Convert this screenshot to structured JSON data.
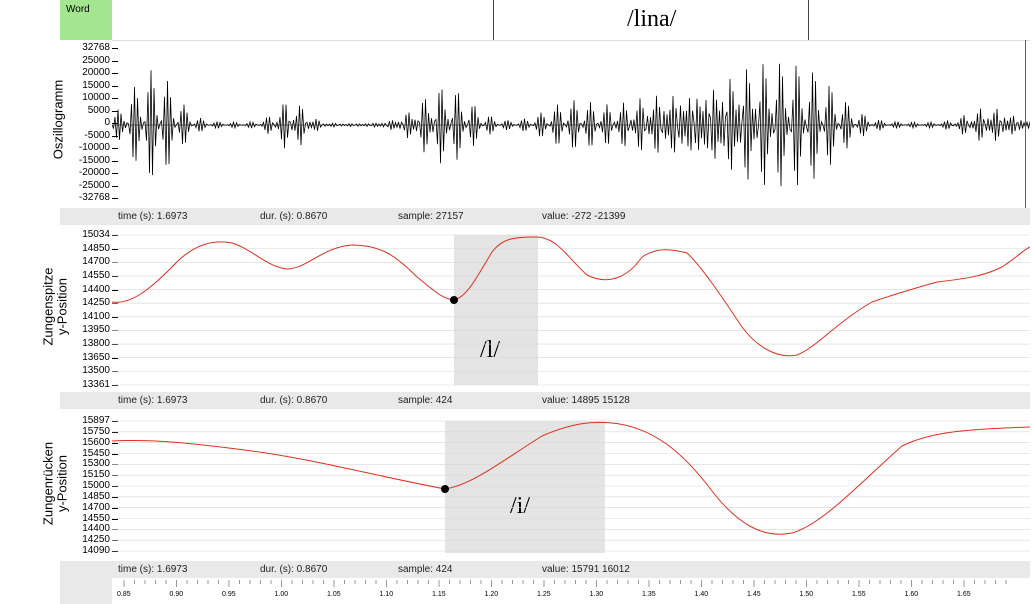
{
  "tier": {
    "name": "Word",
    "segment": "/lina/"
  },
  "panels": {
    "osc": {
      "label": "Oszillogramm",
      "ticks": [
        "32768",
        "25000",
        "20000",
        "15000",
        "10000",
        "5000",
        "0",
        "-5000",
        "-10000",
        "-15000",
        "-20000",
        "-25000",
        "-32768"
      ]
    },
    "tip": {
      "label1": "Zungenspitze",
      "label2": "y-Position",
      "ticks": [
        "15034",
        "14850",
        "14700",
        "14550",
        "14400",
        "14250",
        "14100",
        "13950",
        "13800",
        "13650",
        "13500",
        "13361"
      ],
      "segment": "/l/"
    },
    "back": {
      "label1": "Zungenrücken",
      "label2": "y-Position",
      "ticks": [
        "15897",
        "15750",
        "15600",
        "15450",
        "15300",
        "15150",
        "15000",
        "14850",
        "14700",
        "14550",
        "14400",
        "14250",
        "14090"
      ],
      "segment": "/i/"
    }
  },
  "info": [
    {
      "time": "time (s):  1.6973",
      "dur": "dur. (s):  0.8670",
      "sample": "sample:  27157",
      "value": "value:  -272 -21399"
    },
    {
      "time": "time (s):  1.6973",
      "dur": "dur. (s):  0.8670",
      "sample": "sample:  424",
      "value": "value:  14895 15128"
    },
    {
      "time": "time (s):  1.6973",
      "dur": "dur. (s):  0.8670",
      "sample": "sample:  424",
      "value": "value:  15791 16012"
    }
  ],
  "time_axis": [
    "0.85",
    "0.90",
    "0.95",
    "1.00",
    "1.05",
    "1.10",
    "1.15",
    "1.20",
    "1.25",
    "1.30",
    "1.35",
    "1.40",
    "1.45",
    "1.50",
    "1.55",
    "1.60",
    "1.65"
  ],
  "colors": {
    "trace": "#e0301e",
    "tier_label_bg": "#a4e68f",
    "info_bg": "#e9e9e9",
    "shade": "#e4e4e4"
  }
}
